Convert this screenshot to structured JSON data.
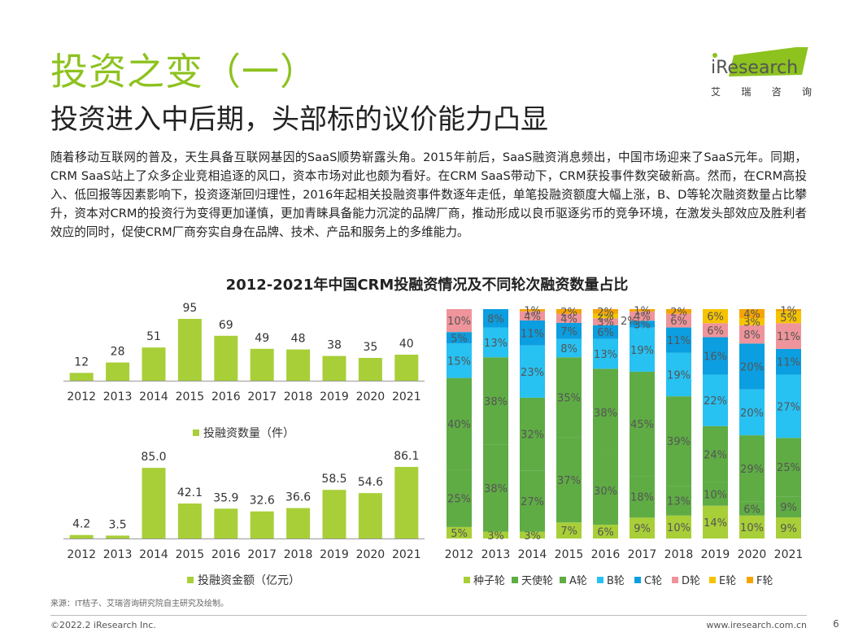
{
  "header": {
    "title": "投资之变（一）",
    "subtitle": "投资进入中后期，头部标的议价能力凸显",
    "logo_text": "iResearch",
    "logo_tag": [
      "艾",
      "瑞",
      "咨",
      "询"
    ]
  },
  "body_text": "随着移动互联网的普及，天生具备互联网基因的SaaS顺势崭露头角。2015年前后，SaaS融资消息频出，中国市场迎来了SaaS元年。同期，CRM SaaS站上了众多企业竞相追逐的风口，资本市场对此也颇为看好。在CRM SaaS带动下，CRM获投事件数突破新高。然而，在CRM高投入、低回报等因素影响下，投资逐渐回归理性，2016年起相关投融资事件数逐年走低，单笔投融资额度大幅上涨，B、D等轮次融资数量占比攀升，资本对CRM的投资行为变得更加谨慎，更加青睐具备能力沉淀的品牌厂商，推动形成以良币驱逐劣币的竞争环境，在激发头部效应及胜利者效应的同时，促使CRM厂商夯实自身在品牌、技术、产品和服务上的多维能力。",
  "figure_title": "2012-2021年中国CRM投融资情况及不同轮次融资数量占比",
  "colors": {
    "accent": "#8dc21f",
    "bar": "#a8cf38",
    "seed": "#a8cf38",
    "angel": "#5fac45",
    "a": "#5fac45",
    "b": "#27c1f2",
    "c": "#0b9ee0",
    "d": "#ee949a",
    "e": "#f6c300",
    "f": "#f5a400"
  },
  "chart_data": [
    {
      "type": "bar",
      "categories": [
        "2012",
        "2013",
        "2014",
        "2015",
        "2016",
        "2017",
        "2018",
        "2019",
        "2020",
        "2021"
      ],
      "series": [
        {
          "name": "投融资数量（件）",
          "values": [
            12,
            28,
            51,
            95,
            69,
            49,
            48,
            38,
            35,
            40
          ]
        }
      ],
      "data_labels": [
        "12",
        "28",
        "51",
        "95",
        "69",
        "49",
        "48",
        "38",
        "35",
        "40"
      ],
      "legend": "bottom"
    },
    {
      "type": "bar",
      "categories": [
        "2012",
        "2013",
        "2014",
        "2015",
        "2016",
        "2017",
        "2018",
        "2019",
        "2020",
        "2021"
      ],
      "series": [
        {
          "name": "投融资金额（亿元）",
          "values": [
            4.2,
            3.5,
            85.0,
            42.1,
            35.9,
            32.6,
            36.6,
            58.5,
            54.6,
            86.1
          ]
        }
      ],
      "data_labels": [
        "4.2",
        "3.5",
        "85.0",
        "42.1",
        "35.9",
        "32.6",
        "36.6",
        "58.5",
        "54.6",
        "86.1"
      ],
      "legend": "bottom"
    },
    {
      "type": "bar",
      "stacked": true,
      "percent": true,
      "categories": [
        "2012",
        "2013",
        "2014",
        "2015",
        "2016",
        "2017",
        "2018",
        "2019",
        "2020",
        "2021"
      ],
      "series": [
        {
          "name": "种子轮",
          "key": "seed",
          "values": [
            5,
            3,
            3,
            7,
            6,
            9,
            10,
            14,
            10,
            9
          ],
          "labels": [
            "5%",
            "3%",
            "3%",
            "7%",
            "6%",
            "9%",
            "10%",
            "14%",
            "10%",
            "9%"
          ]
        },
        {
          "name": "天使轮",
          "key": "angel",
          "values": [
            25,
            38,
            27,
            37,
            30,
            18,
            13,
            10,
            6,
            9
          ],
          "labels": [
            "25%",
            "38%",
            "27%",
            "37%",
            "30%",
            "18%",
            "13%",
            "10%",
            "6%",
            "9%"
          ]
        },
        {
          "name": "A轮",
          "key": "a",
          "values": [
            40,
            38,
            32,
            35,
            38,
            45,
            39,
            24,
            29,
            25
          ],
          "labels": [
            "40%",
            "38%",
            "32%",
            "35%",
            "38%",
            "45%",
            "39%",
            "24%",
            "29%",
            "25%"
          ]
        },
        {
          "name": "B轮",
          "key": "b",
          "values": [
            15,
            13,
            23,
            8,
            13,
            19,
            19,
            22,
            20,
            27
          ],
          "labels": [
            "15%",
            "13%",
            "23%",
            "8%",
            "13%",
            "19%",
            "19%",
            "22%",
            "20%",
            "27%"
          ]
        },
        {
          "name": "C轮",
          "key": "c",
          "values": [
            5,
            8,
            11,
            7,
            6,
            3,
            11,
            16,
            20,
            11
          ],
          "labels": [
            "5%",
            "8%",
            "11%",
            "7%",
            "6%",
            "3%",
            "11%",
            "16%",
            "20%",
            "11%"
          ]
        },
        {
          "name": "D轮",
          "key": "d",
          "values": [
            10,
            0,
            4,
            4,
            3,
            4,
            6,
            6,
            8,
            11
          ],
          "labels": [
            "10%",
            "",
            "4%",
            "4%",
            "3%",
            "4%",
            "6%",
            "6%",
            "8%",
            "11%"
          ]
        },
        {
          "name": "E轮",
          "key": "e",
          "values": [
            0,
            0,
            0,
            0,
            2,
            0,
            0,
            6,
            3,
            5
          ],
          "labels": [
            "",
            "",
            "",
            "",
            "2%",
            "",
            "",
            "6%",
            "3%",
            "5%"
          ]
        },
        {
          "name": "F轮",
          "key": "f",
          "values": [
            0,
            0,
            1,
            2,
            2,
            1,
            2,
            0,
            4,
            1
          ],
          "labels": [
            "",
            "",
            "1%",
            "2%",
            "2%",
            "1%",
            "2%",
            "",
            "4%",
            "1%"
          ]
        }
      ],
      "extra_labels": [
        {
          "category": "2016",
          "text": "2%"
        }
      ],
      "legend": "bottom"
    }
  ],
  "footer": {
    "source": "来源：IT桔子、艾瑞咨询研究院自主研究及绘制。",
    "copyright": "©2022.2 iResearch Inc.",
    "website": "www.iresearch.com.cn",
    "page": "6"
  }
}
